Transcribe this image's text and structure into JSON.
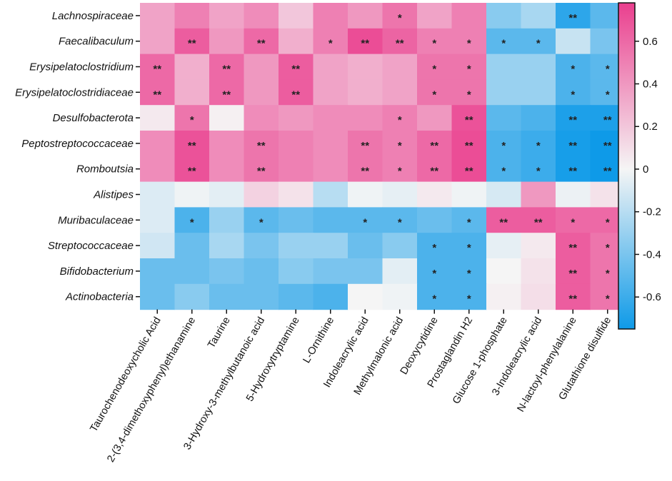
{
  "chart_data": {
    "type": "heatmap",
    "title": "",
    "rows": [
      "Lachnospiraceae",
      "Faecalibaculum",
      "Erysipelatoclostridium",
      "Erysipelatoclostridiaceae",
      "Desulfobacterota",
      "Peptostreptococcaceae",
      "Romboutsia",
      "Alistipes",
      "Muribaculaceae",
      "Streptococcaceae",
      "Bifidobacterium",
      "Actinobacteria"
    ],
    "columns": [
      "Taurochenodeoxycholic Acid",
      "2-(3,4-dimethoxyphenyl)ethanamine",
      "Taurine",
      "3-Hydroxy-3-methylbutanoic acid",
      "5-Hydroxytryptamine",
      "L-Ornithine",
      "Indoleacrylic acid",
      "Methylmalonic acid",
      "Deoxycytidine",
      "Prostaglandin H2",
      "Glucose 1-phosphate",
      "3-Indoleacrylic acid",
      "N-lactoyl-phenylalanine",
      "Glutathione disulfide"
    ],
    "values": [
      [
        0.35,
        0.5,
        0.35,
        0.45,
        0.2,
        0.5,
        0.4,
        0.55,
        0.35,
        0.5,
        -0.35,
        -0.25,
        -0.65,
        -0.5
      ],
      [
        0.35,
        0.65,
        0.4,
        0.6,
        0.3,
        0.5,
        0.72,
        0.62,
        0.5,
        0.5,
        -0.5,
        -0.5,
        -0.15,
        -0.4
      ],
      [
        0.6,
        0.3,
        0.6,
        0.4,
        0.65,
        0.35,
        0.3,
        0.35,
        0.55,
        0.55,
        -0.3,
        -0.3,
        -0.55,
        -0.5
      ],
      [
        0.6,
        0.3,
        0.6,
        0.4,
        0.65,
        0.35,
        0.3,
        0.35,
        0.55,
        0.55,
        -0.3,
        -0.3,
        -0.55,
        -0.5
      ],
      [
        0.05,
        0.55,
        0.02,
        0.45,
        0.4,
        0.45,
        0.45,
        0.5,
        0.4,
        0.7,
        -0.5,
        -0.55,
        -0.7,
        -0.7
      ],
      [
        0.45,
        0.7,
        0.45,
        0.55,
        0.5,
        0.45,
        0.55,
        0.5,
        0.6,
        0.72,
        -0.55,
        -0.6,
        -0.72,
        -0.75
      ],
      [
        0.45,
        0.7,
        0.45,
        0.55,
        0.5,
        0.45,
        0.55,
        0.5,
        0.6,
        0.72,
        -0.55,
        -0.6,
        -0.72,
        -0.75
      ],
      [
        -0.08,
        -0.02,
        -0.06,
        0.15,
        0.08,
        -0.2,
        -0.02,
        -0.05,
        0.05,
        -0.02,
        -0.1,
        0.4,
        -0.03,
        0.08
      ],
      [
        -0.08,
        -0.55,
        -0.3,
        -0.5,
        -0.45,
        -0.5,
        -0.5,
        -0.5,
        -0.45,
        -0.5,
        0.65,
        0.65,
        0.6,
        0.6
      ],
      [
        -0.12,
        -0.45,
        -0.25,
        -0.4,
        -0.3,
        -0.3,
        -0.45,
        -0.35,
        -0.55,
        -0.55,
        -0.05,
        0.05,
        0.65,
        0.55
      ],
      [
        -0.45,
        -0.45,
        -0.4,
        -0.45,
        -0.35,
        -0.4,
        -0.4,
        -0.06,
        -0.55,
        -0.55,
        0.0,
        0.08,
        0.65,
        0.55
      ],
      [
        -0.45,
        -0.35,
        -0.45,
        -0.45,
        -0.5,
        -0.55,
        0.0,
        -0.02,
        -0.55,
        -0.55,
        0.02,
        0.1,
        0.65,
        0.55
      ]
    ],
    "significance": [
      [
        "",
        "",
        "",
        "",
        "",
        "",
        "",
        "*",
        "",
        "",
        "",
        "",
        "**",
        ""
      ],
      [
        "",
        "**",
        "",
        "**",
        "",
        "*",
        "**",
        "**",
        "*",
        "*",
        "*",
        "*",
        "",
        ""
      ],
      [
        "**",
        "",
        "**",
        "",
        "**",
        "",
        "",
        "",
        "*",
        "*",
        "",
        "",
        "*",
        "*"
      ],
      [
        "**",
        "",
        "**",
        "",
        "**",
        "",
        "",
        "",
        "*",
        "*",
        "",
        "",
        "*",
        "*"
      ],
      [
        "",
        "*",
        "",
        "",
        "",
        "",
        "",
        "*",
        "",
        "**",
        "",
        "",
        "**",
        "**"
      ],
      [
        "",
        "**",
        "",
        "**",
        "",
        "",
        "**",
        "*",
        "**",
        "**",
        "*",
        "*",
        "**",
        "**"
      ],
      [
        "",
        "**",
        "",
        "**",
        "",
        "",
        "**",
        "*",
        "**",
        "**",
        "*",
        "*",
        "**",
        "**"
      ],
      [
        "",
        "",
        "",
        "",
        "",
        "",
        "",
        "",
        "",
        "",
        "",
        "",
        "",
        ""
      ],
      [
        "",
        "*",
        "",
        "*",
        "",
        "",
        "*",
        "*",
        "",
        "*",
        "**",
        "**",
        "*",
        "*"
      ],
      [
        "",
        "",
        "",
        "",
        "",
        "",
        "",
        "",
        "*",
        "*",
        "",
        "",
        "**",
        "*"
      ],
      [
        "",
        "",
        "",
        "",
        "",
        "",
        "",
        "",
        "*",
        "*",
        "",
        "",
        "**",
        "*"
      ],
      [
        "",
        "",
        "",
        "",
        "",
        "",
        "",
        "",
        "*",
        "*",
        "",
        "",
        "**",
        "*"
      ]
    ],
    "colorbar": {
      "min": -0.75,
      "max": 0.78,
      "ticks": [
        0.6,
        0.4,
        0.2,
        0,
        -0.2,
        -0.4,
        -0.6
      ],
      "tick_labels": [
        "0.6",
        "0.4",
        "0.2",
        "0",
        "-0.2",
        "-0.4",
        "-0.6"
      ],
      "colors": {
        "low": "#0e9ae8",
        "mid": "#f5f5f5",
        "high": "#ea3f8e"
      }
    }
  }
}
